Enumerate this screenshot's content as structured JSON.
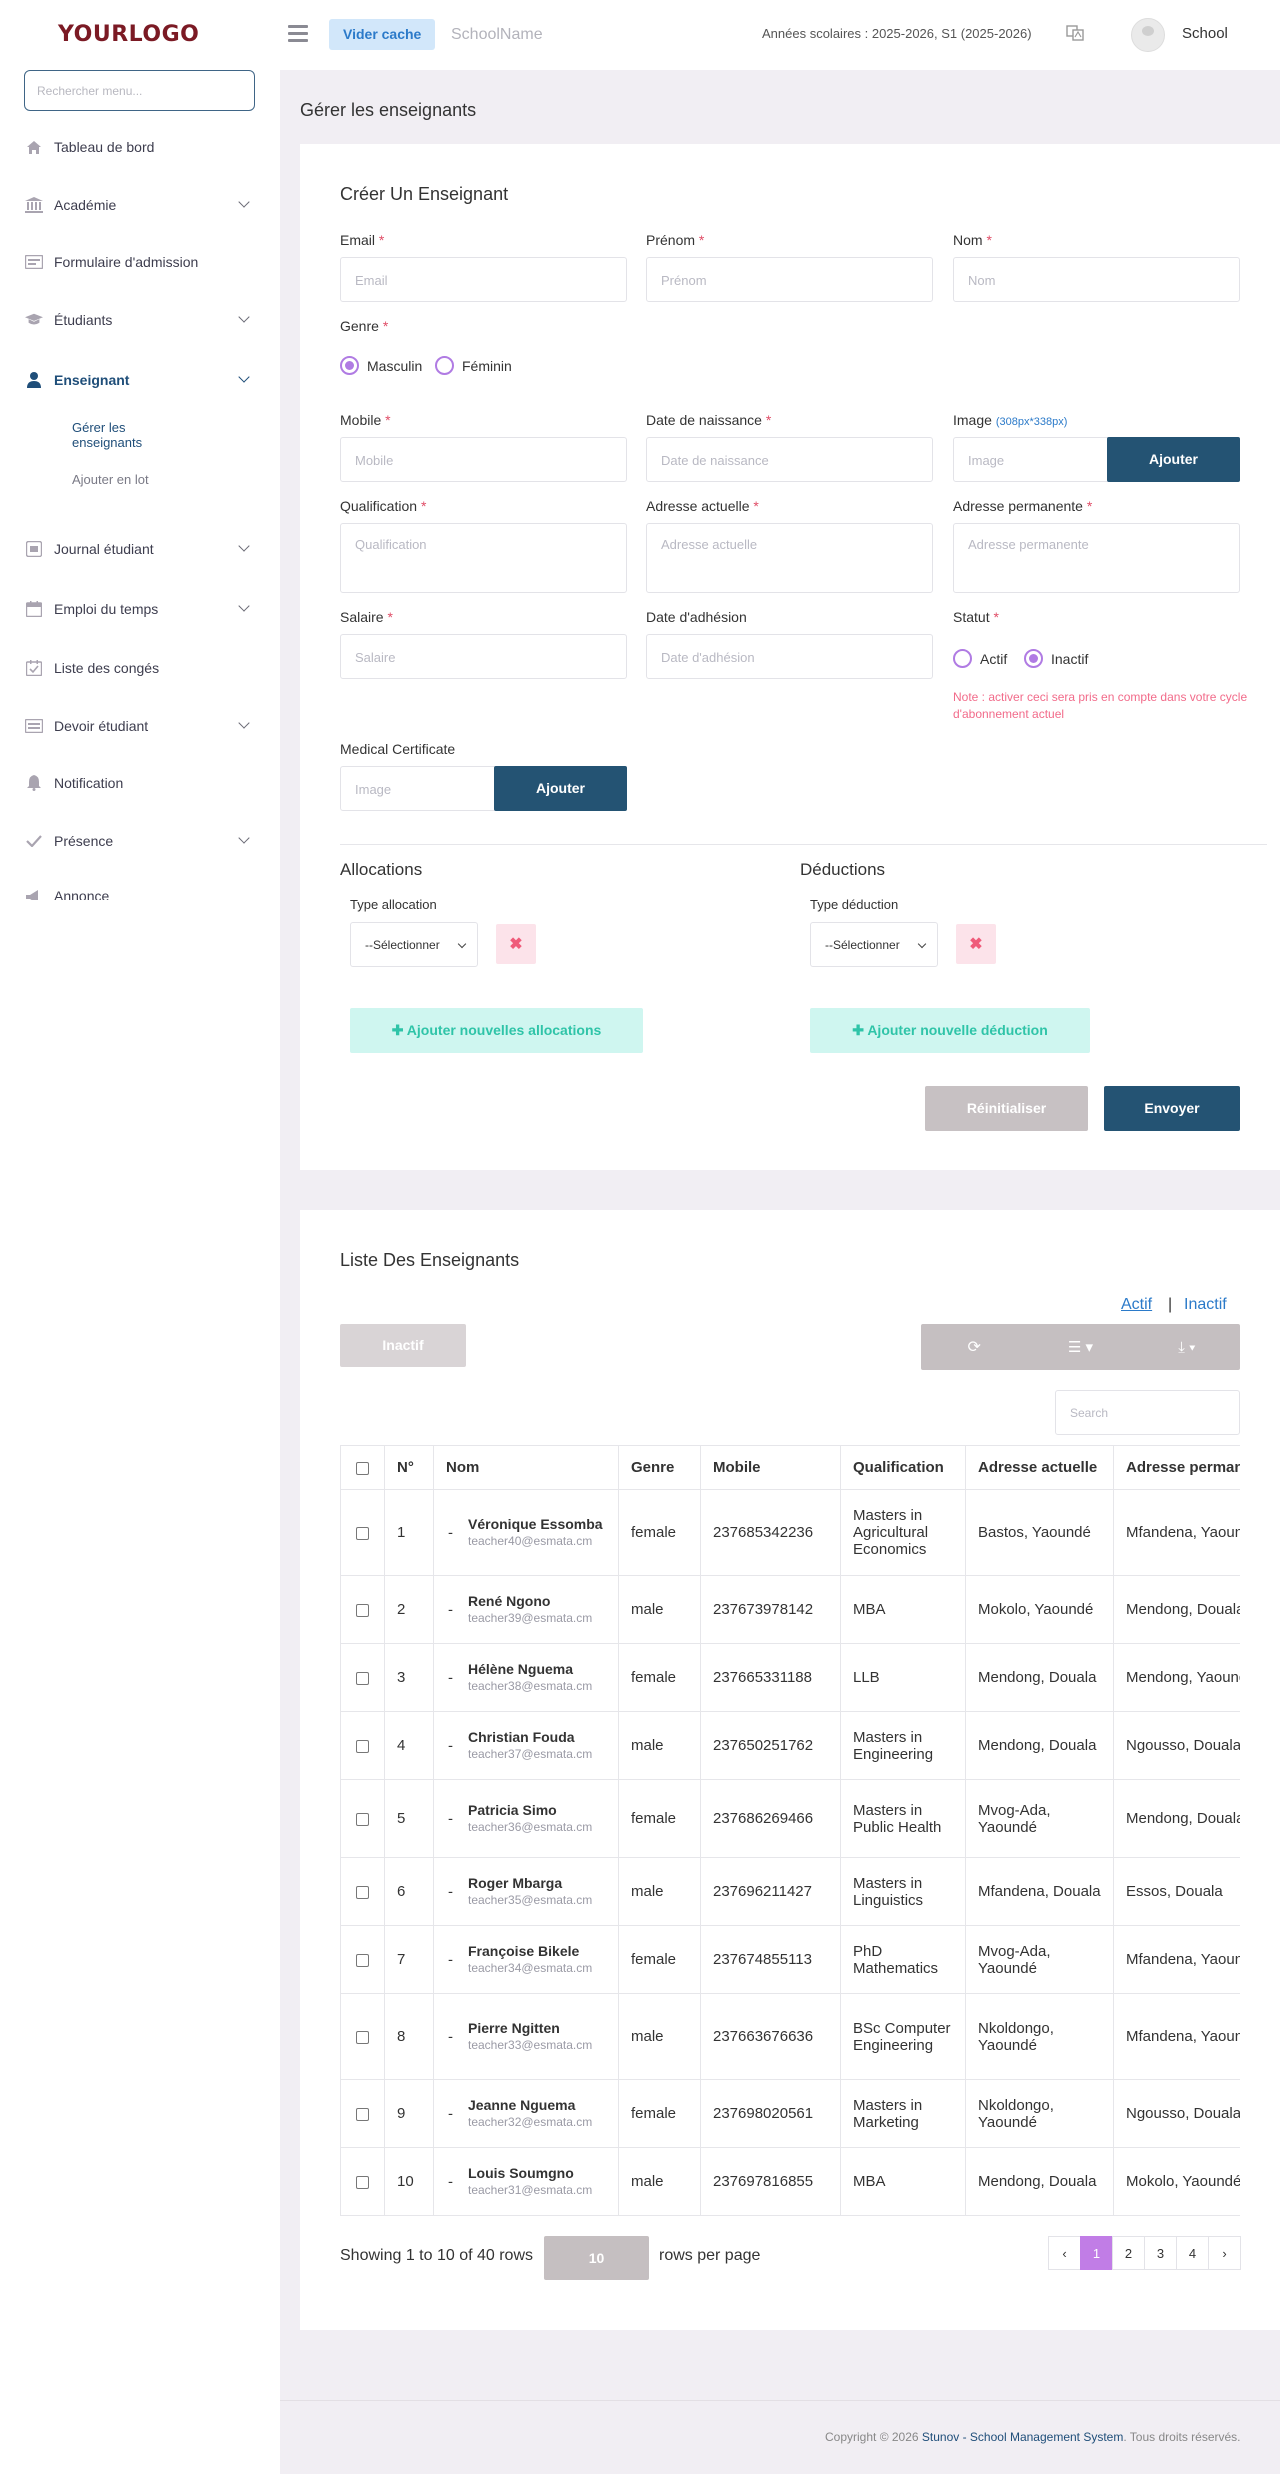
{
  "header": {
    "logo_text": "YOURLOGO",
    "clear_cache": "Vider cache",
    "school_name": "SchoolName",
    "years": "Années scolaires : 2025-2026, S1 (2025-2026)",
    "user": "School"
  },
  "sidebar": {
    "search_placeholder": "Rechercher menu...",
    "items": [
      {
        "label": "Tableau de bord",
        "icon": "home-icon"
      },
      {
        "label": "Académie",
        "icon": "bank-icon"
      },
      {
        "label": "Formulaire d'admission",
        "icon": "form-icon"
      },
      {
        "label": "Étudiants",
        "icon": "graduation-cap-icon"
      },
      {
        "label": "Enseignant",
        "icon": "user-icon"
      },
      {
        "label": "Journal étudiant",
        "icon": "journal-icon"
      },
      {
        "label": "Emploi du temps",
        "icon": "calendar-icon"
      },
      {
        "label": "Liste des congés",
        "icon": "calendar-check-icon"
      },
      {
        "label": "Devoir étudiant",
        "icon": "homework-icon"
      },
      {
        "label": "Notification",
        "icon": "bell-icon"
      },
      {
        "label": "Présence",
        "icon": "check-icon"
      },
      {
        "label": "Annonce",
        "icon": "megaphone-icon"
      }
    ],
    "sub_items": [
      "Gérer les enseignants",
      "Ajouter en lot"
    ]
  },
  "page_title": "Gérer les enseignants",
  "form": {
    "title": "Créer Un Enseignant",
    "email_label": "Email",
    "email_ph": "Email",
    "prenom_label": "Prénom",
    "prenom_ph": "Prénom",
    "nom_label": "Nom",
    "nom_ph": "Nom",
    "genre_label": "Genre",
    "genre_options": [
      "Masculin",
      "Féminin"
    ],
    "mobile_label": "Mobile",
    "mobile_ph": "Mobile",
    "dob_label": "Date de naissance",
    "dob_ph": "Date de naissance",
    "image_label": "Image",
    "image_hint": "(308px*338px)",
    "image_ph": "Image",
    "add_btn": "Ajouter",
    "qual_label": "Qualification",
    "qual_ph": "Qualification",
    "addr_label": "Adresse actuelle",
    "addr_ph": "Adresse actuelle",
    "perm_label": "Adresse permanente",
    "perm_ph": "Adresse permanente",
    "salary_label": "Salaire",
    "salary_ph": "Salaire",
    "join_label": "Date d'adhésion",
    "join_ph": "Date d'adhésion",
    "status_label": "Statut",
    "status_options": [
      "Actif",
      "Inactif"
    ],
    "note": "Note : activer ceci sera pris en compte dans votre cycle d'abonnement actuel",
    "medical_label": "Medical Certificate",
    "medical_ph": "Image",
    "alloc_title": "Allocations",
    "alloc_type": "Type allocation",
    "select_ph": "--Sélectionner",
    "alloc_add": "Ajouter nouvelles allocations",
    "ded_title": "Déductions",
    "ded_type": "Type déduction",
    "ded_add": "Ajouter nouvelle déduction",
    "reset_btn": "Réinitialiser",
    "submit_btn": "Envoyer"
  },
  "list": {
    "title": "Liste Des Enseignants",
    "tab_active": "Actif",
    "tab_sep": "|",
    "tab_inactive": "Inactif",
    "inactive_btn": "Inactif",
    "search_ph": "Search",
    "columns": [
      "N°",
      "Nom",
      "Genre",
      "Mobile",
      "Qualification",
      "Adresse actuelle",
      "Adresse permanente"
    ],
    "rows": [
      {
        "n": "1",
        "name": "Véronique Essomba",
        "email": "teacher40@esmata.cm",
        "genre": "female",
        "mobile": "237685342236",
        "qual": "Masters in Agricultural Economics",
        "addr": "Bastos, Yaoundé",
        "perm": "Mfandena, Yaoundé"
      },
      {
        "n": "2",
        "name": "René Ngono",
        "email": "teacher39@esmata.cm",
        "genre": "male",
        "mobile": "237673978142",
        "qual": "MBA",
        "addr": "Mokolo, Yaoundé",
        "perm": "Mendong, Douala"
      },
      {
        "n": "3",
        "name": "Hélène Nguema",
        "email": "teacher38@esmata.cm",
        "genre": "female",
        "mobile": "237665331188",
        "qual": "LLB",
        "addr": "Mendong, Douala",
        "perm": "Mendong, Yaoundé"
      },
      {
        "n": "4",
        "name": "Christian Fouda",
        "email": "teacher37@esmata.cm",
        "genre": "male",
        "mobile": "237650251762",
        "qual": "Masters in Engineering",
        "addr": "Mendong, Douala",
        "perm": "Ngousso, Douala"
      },
      {
        "n": "5",
        "name": "Patricia Simo",
        "email": "teacher36@esmata.cm",
        "genre": "female",
        "mobile": "237686269466",
        "qual": "Masters in Public Health",
        "addr": "Mvog-Ada, Yaoundé",
        "perm": "Mendong, Douala"
      },
      {
        "n": "6",
        "name": "Roger Mbarga",
        "email": "teacher35@esmata.cm",
        "genre": "male",
        "mobile": "237696211427",
        "qual": "Masters in Linguistics",
        "addr": "Mfandena, Douala",
        "perm": "Essos, Douala"
      },
      {
        "n": "7",
        "name": "Françoise Bikele",
        "email": "teacher34@esmata.cm",
        "genre": "female",
        "mobile": "237674855113",
        "qual": "PhD Mathematics",
        "addr": "Mvog-Ada, Yaoundé",
        "perm": "Mfandena, Yaoundé"
      },
      {
        "n": "8",
        "name": "Pierre Ngitten",
        "email": "teacher33@esmata.cm",
        "genre": "male",
        "mobile": "237663676636",
        "qual": "BSc Computer Engineering",
        "addr": "Nkoldongo, Yaoundé",
        "perm": "Mfandena, Yaoundé"
      },
      {
        "n": "9",
        "name": "Jeanne Nguema",
        "email": "teacher32@esmata.cm",
        "genre": "female",
        "mobile": "237698020561",
        "qual": "Masters in Marketing",
        "addr": "Nkoldongo, Yaoundé",
        "perm": "Ngousso, Douala"
      },
      {
        "n": "10",
        "name": "Louis Soumgno",
        "email": "teacher31@esmata.cm",
        "genre": "male",
        "mobile": "237697816855",
        "qual": "MBA",
        "addr": "Mendong, Douala",
        "perm": "Mokolo, Yaoundé"
      }
    ],
    "showing": "Showing 1 to 10 of 40 rows",
    "rows_per_page_value": "10",
    "rows_per_page_label": "rows per page",
    "pages": [
      "‹",
      "1",
      "2",
      "3",
      "4",
      "›"
    ],
    "active_page": "1"
  },
  "footer": {
    "prefix": "Copyright © 2026 ",
    "brand": "Stunov - School Management System",
    "suffix": ". Tous droits réservés."
  },
  "colors": {
    "primary": "#245373",
    "accent": "#c17de6",
    "danger": "#e04c66",
    "teal": "#2fc4a8"
  }
}
